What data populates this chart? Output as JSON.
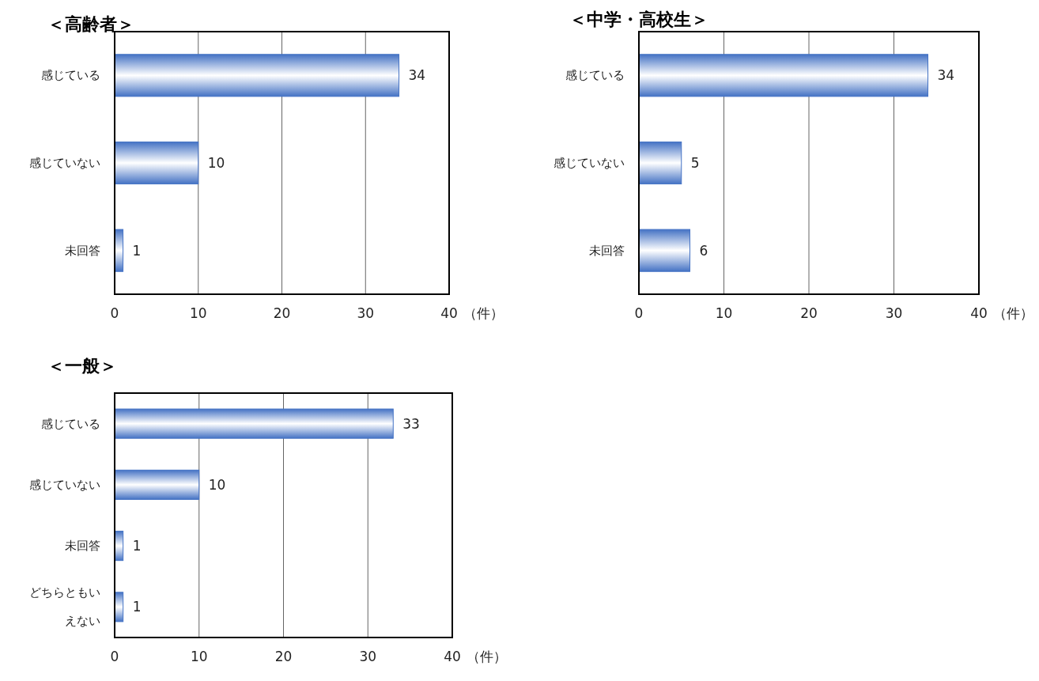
{
  "chart_data": [
    {
      "type": "bar",
      "orientation": "horizontal",
      "title": "＜高齢者＞",
      "categories": [
        "感じている",
        "感じていない",
        "未回答"
      ],
      "values": [
        34,
        10,
        1
      ],
      "color": "#4472c4",
      "xlim": [
        0,
        40
      ],
      "xticks": [
        0,
        10,
        20,
        30,
        40
      ],
      "xlabel": "（件）",
      "grid": "x",
      "data_labels": true
    },
    {
      "type": "bar",
      "orientation": "horizontal",
      "title": "＜中学・高校生＞",
      "categories": [
        "感じている",
        "感じていない",
        "未回答"
      ],
      "values": [
        34,
        5,
        6
      ],
      "color": "#4472c4",
      "xlim": [
        0,
        40
      ],
      "xticks": [
        0,
        10,
        20,
        30,
        40
      ],
      "xlabel": "（件）",
      "grid": "x",
      "data_labels": true
    },
    {
      "type": "bar",
      "orientation": "horizontal",
      "title": "＜一般＞",
      "categories": [
        "感じている",
        "感じていない",
        "未回答",
        "どちらともいえない"
      ],
      "values": [
        33,
        10,
        1,
        1
      ],
      "color": "#4472c4",
      "xlim": [
        0,
        40
      ],
      "xticks": [
        0,
        10,
        20,
        30,
        40
      ],
      "xlabel": "（件）",
      "grid": "x",
      "data_labels": true
    }
  ]
}
